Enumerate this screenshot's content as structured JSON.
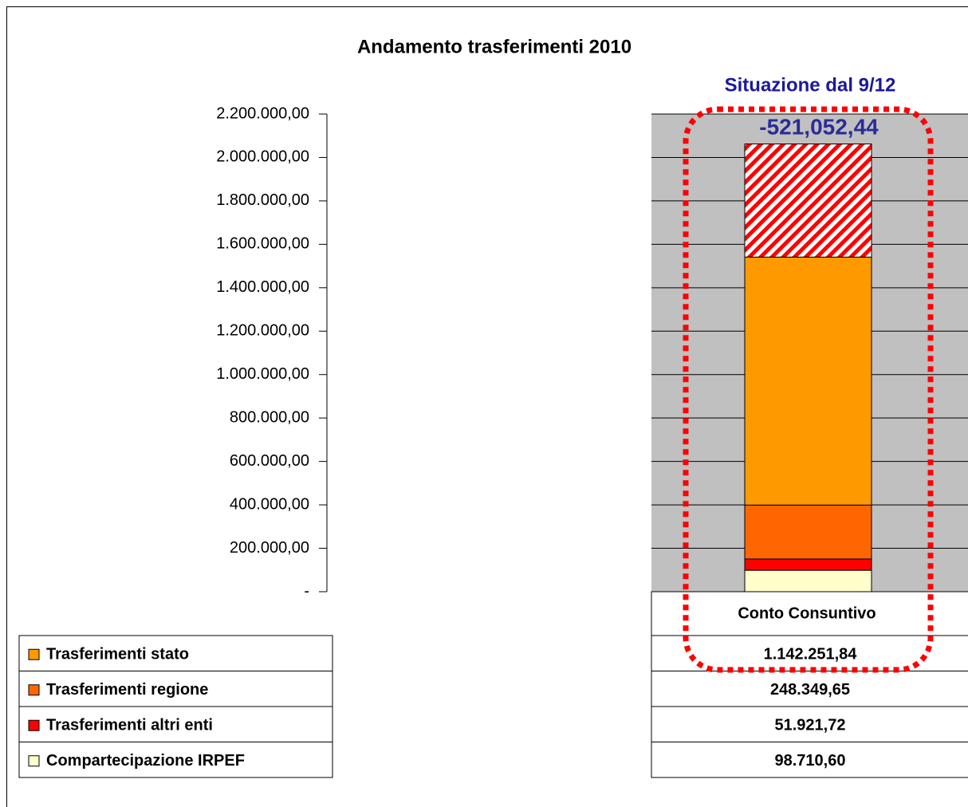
{
  "chart_data": {
    "type": "stacked_bar",
    "title": "Andamento trasferimenti 2010",
    "subtitle": "Situazione dal 9/12",
    "categories": [
      "Conto Consuntivo"
    ],
    "series": [
      {
        "name": "Trasferimenti stato",
        "color": "#ff9900",
        "values": [
          1142251.84
        ],
        "value_labels": [
          "1.142.251,84"
        ]
      },
      {
        "name": "Trasferimenti regione",
        "color": "#ff6600",
        "values": [
          248349.65
        ],
        "value_labels": [
          "248.349,65"
        ]
      },
      {
        "name": "Trasferimenti altri enti",
        "color": "#ff0000",
        "values": [
          51921.72
        ],
        "value_labels": [
          "51.921,72"
        ]
      },
      {
        "name": "Compartecipazione IRPEF",
        "color": "#ffffcc",
        "values": [
          98710.6
        ],
        "value_labels": [
          "98.710,60"
        ]
      }
    ],
    "deficit": {
      "value": -521052.44,
      "label": "-521,052,44",
      "color": "#ff0000"
    },
    "ylim": [
      0,
      2200000
    ],
    "yticks": [
      {
        "value": 0,
        "label": "-"
      },
      {
        "value": 200000,
        "label": "200.000,00"
      },
      {
        "value": 400000,
        "label": "400.000,00"
      },
      {
        "value": 600000,
        "label": "600.000,00"
      },
      {
        "value": 800000,
        "label": "800.000,00"
      },
      {
        "value": 1000000,
        "label": "1.000.000,00"
      },
      {
        "value": 1200000,
        "label": "1.200.000,00"
      },
      {
        "value": 1400000,
        "label": "1.400.000,00"
      },
      {
        "value": 1600000,
        "label": "1.600.000,00"
      },
      {
        "value": 1800000,
        "label": "1.800.000,00"
      },
      {
        "value": 2000000,
        "label": "2.000.000,00"
      },
      {
        "value": 2200000,
        "label": "2.200.000,00"
      }
    ],
    "grid": true
  }
}
